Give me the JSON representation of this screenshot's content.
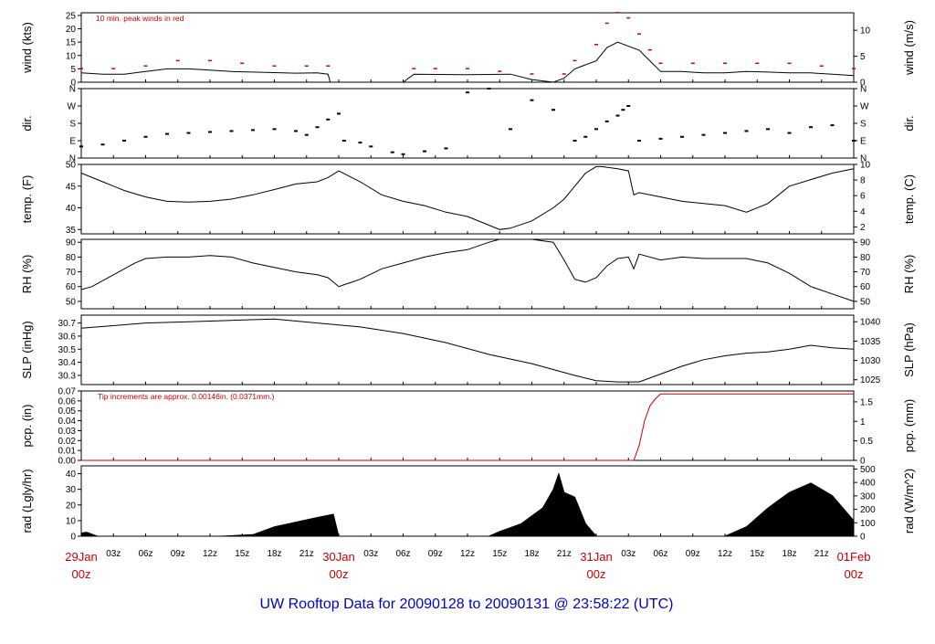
{
  "colors": {
    "red": "#cc0000",
    "blue": "#1a1acc",
    "black": "#000000"
  },
  "footer": {
    "title": "UW Rooftop Data for 20090128  to  20090131 @ 23:58:22  (UTC)"
  },
  "time_axis": {
    "unit": "hours since 29Jan 00z",
    "range": [
      0,
      72
    ],
    "day_labels": [
      {
        "t": 0,
        "top": "29Jan",
        "bottom": "00z"
      },
      {
        "t": 24,
        "top": "30Jan",
        "bottom": "00z"
      },
      {
        "t": 48,
        "top": "31Jan",
        "bottom": "00z"
      },
      {
        "t": 72,
        "top": "01Feb",
        "bottom": "00z"
      }
    ],
    "hour_labels": [
      "03z",
      "06z",
      "09z",
      "12z",
      "15z",
      "18z",
      "21z"
    ]
  },
  "chart_data": [
    {
      "type": "line",
      "id": "wind",
      "ylabel_left": "wind (kts)",
      "ylabel_right": "wind (m/s)",
      "annotation": "10 min. peak winds in red",
      "ylim": [
        0,
        26
      ],
      "left_ticks": [
        0,
        5,
        10,
        15,
        20,
        25
      ],
      "right_ticks": [
        0,
        5,
        10
      ],
      "right_scale": 0.5144,
      "series": [
        {
          "role": "mean",
          "color": "#000000",
          "x": [
            0,
            2,
            4,
            6,
            8,
            10,
            12,
            14,
            16,
            18,
            20,
            22,
            23,
            23.2,
            30,
            31,
            36,
            40,
            42,
            44,
            45,
            46,
            48,
            49,
            50,
            52,
            53,
            54,
            56,
            58,
            60,
            62,
            64,
            66,
            68,
            70,
            72
          ],
          "y": [
            3.5,
            3,
            3,
            4,
            5,
            5,
            4.5,
            4,
            3.8,
            3.6,
            3.4,
            3.5,
            3,
            0,
            0,
            3,
            2.8,
            3,
            1,
            0,
            1.5,
            5,
            8,
            13,
            15,
            12,
            8,
            4,
            4,
            3.5,
            3.5,
            4,
            3.8,
            3.5,
            3.5,
            3,
            2.5
          ]
        },
        {
          "role": "peak",
          "color": "#cc0000",
          "x": [
            0,
            3,
            6,
            9,
            12,
            15,
            18,
            21,
            23,
            31,
            33,
            36,
            39,
            42,
            45,
            46,
            48,
            49,
            50,
            51,
            52,
            53,
            54,
            57,
            60,
            63,
            66,
            69,
            72
          ],
          "y": [
            5,
            5,
            6,
            8,
            8,
            7,
            6,
            6,
            6,
            5,
            5,
            5,
            4,
            3,
            3,
            8,
            14,
            22,
            26,
            24,
            18,
            12,
            7,
            7,
            7,
            7,
            7,
            6,
            5
          ]
        }
      ]
    },
    {
      "type": "scatter",
      "id": "dir",
      "ylabel_left": "dir.",
      "ylabel_right": "dir.",
      "ylim": [
        0,
        360
      ],
      "tick_values": [
        0,
        90,
        180,
        270,
        360
      ],
      "tick_labels": [
        "N",
        "E",
        "S",
        "W",
        "N"
      ],
      "series": [
        {
          "name": "direction",
          "color": "#000000",
          "x": [
            0,
            2,
            4,
            6,
            8,
            10,
            12,
            14,
            16,
            18,
            20,
            21,
            22,
            23,
            24,
            24.5,
            26,
            27,
            29,
            30,
            32,
            34,
            36,
            38,
            40,
            42,
            44,
            46,
            47,
            48,
            49,
            50,
            50.5,
            51,
            52,
            54,
            56,
            58,
            60,
            62,
            64,
            66,
            68,
            70,
            72
          ],
          "y": [
            60,
            70,
            90,
            110,
            125,
            130,
            135,
            140,
            145,
            150,
            140,
            120,
            160,
            200,
            230,
            90,
            80,
            60,
            30,
            20,
            35,
            50,
            340,
            360,
            150,
            300,
            250,
            90,
            110,
            150,
            190,
            220,
            250,
            270,
            90,
            100,
            110,
            120,
            130,
            140,
            150,
            130,
            160,
            170,
            90
          ]
        }
      ]
    },
    {
      "type": "line",
      "id": "temp",
      "ylabel_left": "temp. (F)",
      "ylabel_right": "temp. (C)",
      "ylim": [
        34,
        50
      ],
      "left_ticks": [
        35,
        40,
        45,
        50
      ],
      "right_ticks": [
        2,
        4,
        6,
        8,
        10
      ],
      "series": [
        {
          "name": "temperature",
          "color": "#000000",
          "x": [
            0,
            2,
            4,
            6,
            8,
            10,
            12,
            14,
            16,
            18,
            20,
            22,
            23,
            24,
            26,
            28,
            30,
            32,
            34,
            36,
            38,
            39,
            40,
            42,
            44,
            45,
            46,
            47,
            48,
            48.5,
            50,
            51,
            51.5,
            52,
            54,
            56,
            58,
            60,
            62,
            64,
            66,
            68,
            70,
            72
          ],
          "y": [
            48,
            46,
            44,
            42.5,
            41.5,
            41.3,
            41.5,
            42,
            43,
            44.2,
            45.5,
            46,
            47,
            48.5,
            46,
            43,
            41.5,
            40.5,
            39,
            38,
            36,
            35,
            35.3,
            37,
            40,
            42,
            45,
            48,
            49.5,
            49.5,
            49,
            48.5,
            43,
            43.5,
            42.5,
            41.5,
            41,
            40.5,
            39,
            41,
            45,
            46.5,
            48,
            49
          ]
        }
      ]
    },
    {
      "type": "line",
      "id": "rh",
      "ylabel_left": "RH (%)",
      "ylabel_right": "RH (%)",
      "ylim": [
        45,
        92
      ],
      "left_ticks": [
        50,
        60,
        70,
        80,
        90
      ],
      "right_ticks": [
        50,
        60,
        70,
        80,
        90
      ],
      "series": [
        {
          "name": "relative humidity",
          "color": "#000000",
          "x": [
            0,
            1,
            3,
            5,
            6,
            8,
            10,
            12,
            14,
            16,
            18,
            20,
            22,
            23,
            24,
            26,
            28,
            30,
            32,
            34,
            36,
            38,
            39,
            40,
            42,
            44,
            45,
            46,
            47,
            48,
            49,
            50,
            51,
            51.5,
            52,
            54,
            56,
            58,
            60,
            62,
            64,
            66,
            68,
            70,
            72
          ],
          "y": [
            58,
            60,
            68,
            76,
            79,
            80,
            80,
            81,
            80,
            76,
            73,
            70,
            68,
            66,
            60,
            65,
            72,
            76,
            80,
            83,
            85,
            90,
            92,
            92,
            92,
            90,
            78,
            65,
            63,
            66,
            74,
            79,
            80,
            72,
            82,
            78,
            80,
            79,
            79,
            79,
            76,
            69,
            60,
            55,
            50
          ]
        }
      ]
    },
    {
      "type": "line",
      "id": "slp",
      "ylabel_left": "SLP (inHg)",
      "ylabel_right": "SLP (hPa)",
      "ylim": [
        30.23,
        30.76
      ],
      "left_ticks": [
        30.3,
        30.4,
        30.5,
        30.6,
        30.7
      ],
      "left_labels": [
        "30.3",
        "30.4",
        "30.5",
        "30.6",
        "30.7"
      ],
      "right_ticks_inhg": [
        30.2667,
        30.4143,
        30.562,
        30.7096
      ],
      "right_labels": [
        "1025",
        "1030",
        "1035",
        "1040"
      ],
      "series": [
        {
          "name": "sea level pressure",
          "color": "#000000",
          "x": [
            0,
            3,
            6,
            10,
            14,
            18,
            22,
            26,
            30,
            34,
            38,
            42,
            46,
            48,
            50,
            52,
            54,
            56,
            58,
            60,
            62,
            64,
            66,
            68,
            70,
            72
          ],
          "y": [
            30.66,
            30.68,
            30.7,
            30.71,
            30.72,
            30.73,
            30.7,
            30.67,
            30.62,
            30.55,
            30.46,
            30.39,
            30.3,
            30.26,
            30.25,
            30.25,
            30.31,
            30.37,
            30.42,
            30.45,
            30.47,
            30.48,
            30.5,
            30.53,
            30.51,
            30.5
          ]
        }
      ]
    },
    {
      "type": "line",
      "id": "pcp",
      "ylabel_left": "pcp. (in)",
      "ylabel_right": "pcp. (mm)",
      "annotation": "Tip increments are approx. 0.00146in. (0.0371mm.)",
      "ylim": [
        0,
        0.07
      ],
      "left_ticks": [
        0,
        0.01,
        0.02,
        0.03,
        0.04,
        0.05,
        0.06,
        0.07
      ],
      "left_labels": [
        "0.00",
        "0.01",
        "0.02",
        "0.03",
        "0.04",
        "0.05",
        "0.06",
        "0.07"
      ],
      "right_ticks_mm": [
        0,
        0.5,
        1,
        1.5
      ],
      "right_labels": [
        "0",
        "0.5",
        "1",
        "1.5"
      ],
      "series": [
        {
          "name": "precipitation",
          "color": "#cc0000",
          "x": [
            0,
            51.5,
            52,
            52.5,
            53,
            53.5,
            54,
            72
          ],
          "y": [
            0,
            0,
            0.015,
            0.04,
            0.055,
            0.062,
            0.067,
            0.067
          ]
        }
      ]
    },
    {
      "type": "area",
      "id": "rad",
      "ylabel_left": "rad (Lgly/hr)",
      "ylabel_right": "rad (W/m^2)",
      "ylim": [
        0,
        45
      ],
      "left_ticks": [
        0,
        10,
        20,
        30,
        40
      ],
      "right_ticks_wm2": [
        0,
        100,
        200,
        300,
        400,
        500
      ],
      "series": [
        {
          "name": "solar radiation",
          "color": "#000000",
          "x": [
            0,
            0.5,
            1.5,
            13,
            16,
            18,
            20,
            22,
            23.5,
            24,
            38,
            39,
            41,
            43,
            44,
            44.5,
            45,
            46,
            47,
            48,
            60,
            62,
            64,
            66,
            68,
            70,
            72
          ],
          "y": [
            2,
            2.5,
            0,
            0,
            1,
            6,
            9,
            12,
            14,
            0,
            0,
            3,
            8,
            18,
            30,
            40,
            28,
            25,
            8,
            0,
            0,
            6,
            18,
            28,
            34,
            26,
            10
          ]
        }
      ]
    }
  ]
}
